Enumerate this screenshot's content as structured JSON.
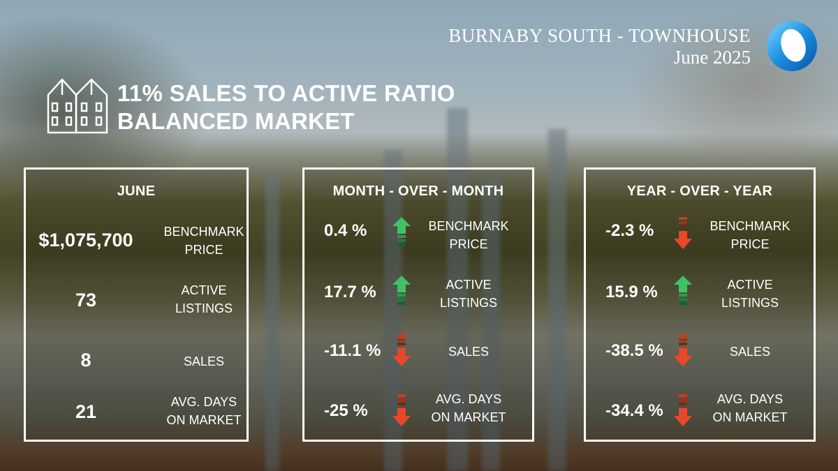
{
  "header": {
    "title": "BURNABY SOUTH -  TOWNHOUSE",
    "date": "June 2025"
  },
  "summary": {
    "line1": "11% SALES TO ACTIVE RATIO",
    "line2": "BALANCED MARKET",
    "icon": "townhouse-icon"
  },
  "june": {
    "heading": "JUNE",
    "rows": [
      {
        "value": "$1,075,700",
        "label1": "BENCHMARK",
        "label2": "PRICE"
      },
      {
        "value": "73",
        "label1": "ACTIVE",
        "label2": "LISTINGS"
      },
      {
        "value": "8",
        "label1": "SALES",
        "label2": ""
      },
      {
        "value": "21",
        "label1": "AVG. DAYS",
        "label2": "ON MARKET"
      }
    ]
  },
  "mom": {
    "heading": "MONTH - OVER - MONTH",
    "rows": [
      {
        "value": "0.4 %",
        "direction": "up",
        "label1": "BENCHMARK",
        "label2": "PRICE"
      },
      {
        "value": "17.7 %",
        "direction": "up",
        "label1": "ACTIVE",
        "label2": "LISTINGS"
      },
      {
        "value": "-11.1 %",
        "direction": "down",
        "label1": "SALES",
        "label2": ""
      },
      {
        "value": "-25 %",
        "direction": "down",
        "label1": "AVG. DAYS",
        "label2": "ON MARKET"
      }
    ]
  },
  "yoy": {
    "heading": "YEAR - OVER - YEAR",
    "rows": [
      {
        "value": "-2.3 %",
        "direction": "down",
        "label1": "BENCHMARK",
        "label2": "PRICE"
      },
      {
        "value": "15.9 %",
        "direction": "up",
        "label1": "ACTIVE",
        "label2": "LISTINGS"
      },
      {
        "value": "-38.5 %",
        "direction": "down",
        "label1": "SALES",
        "label2": ""
      },
      {
        "value": "-34.4 %",
        "direction": "down",
        "label1": "AVG. DAYS",
        "label2": "ON MARKET"
      }
    ]
  },
  "colors": {
    "up": "#3fc265",
    "down": "#e8482a"
  }
}
